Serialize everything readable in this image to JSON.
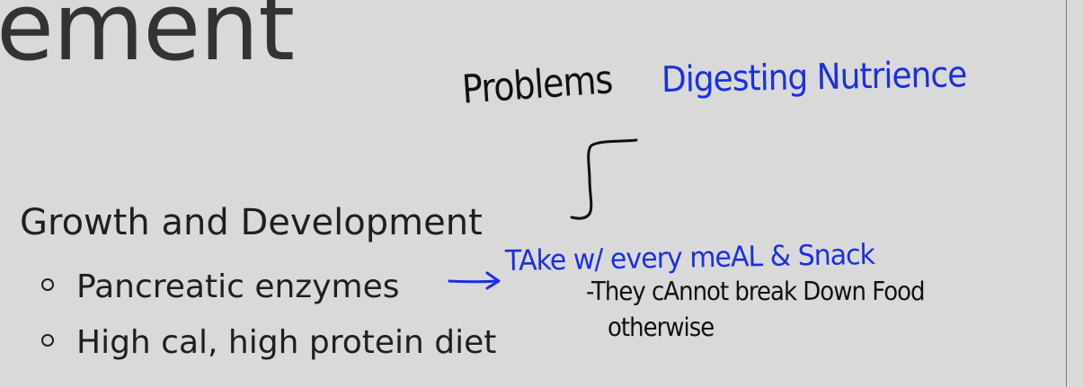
{
  "slide": {
    "title_fragment": "ement",
    "heading": "Growth and Development",
    "bullets": [
      "Pancreatic enzymes",
      "High cal, high protein diet"
    ]
  },
  "annotations": {
    "problems": "Problems",
    "digesting": "Digesting Nutrience",
    "take_with": "TAke w/ every meAL & Snack",
    "cannot_line1": "-They cAnnot break Down Food",
    "cannot_line2": "otherwise"
  },
  "colors": {
    "background": "#d9d9d9",
    "text": "#1f1f1f",
    "ink_black": "#111111",
    "ink_blue": "#1b2fe0"
  }
}
